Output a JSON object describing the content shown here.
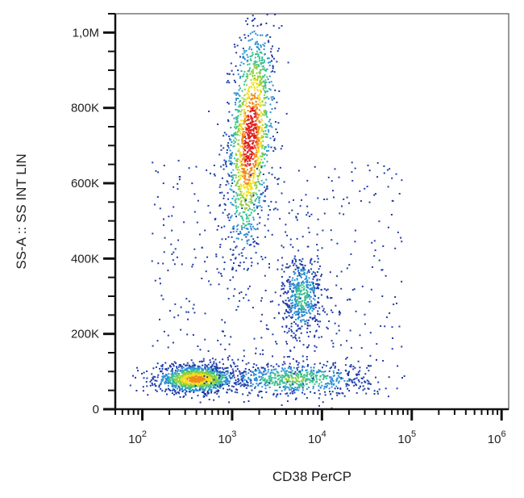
{
  "chart_data": {
    "type": "scatter",
    "subtype": "flow-cytometry density dot plot",
    "title": "",
    "xlabel": "CD38 PerCP",
    "ylabel": "SS-A :: SS INT LIN",
    "x_scale": "log",
    "y_scale": "linear",
    "xlim": [
      50,
      1200000
    ],
    "ylim": [
      0,
      1050000
    ],
    "grid": false,
    "legend": "none",
    "x_ticks": [
      {
        "value": 100,
        "base": "10",
        "exp": "2"
      },
      {
        "value": 1000,
        "base": "10",
        "exp": "3"
      },
      {
        "value": 10000,
        "base": "10",
        "exp": "4"
      },
      {
        "value": 100000,
        "base": "10",
        "exp": "5"
      },
      {
        "value": 1000000,
        "base": "10",
        "exp": "6"
      }
    ],
    "y_ticks": [
      {
        "value": 0,
        "label": "0"
      },
      {
        "value": 200000,
        "label": "200K"
      },
      {
        "value": 400000,
        "label": "400K"
      },
      {
        "value": 600000,
        "label": "600K"
      },
      {
        "value": 800000,
        "label": "800K"
      },
      {
        "value": 1000000,
        "label": "1,0M"
      }
    ],
    "colormap": [
      "#1f3ca8",
      "#2c8fd6",
      "#3bbf8f",
      "#8fcf3a",
      "#f0e020",
      "#f08a1c",
      "#e01e1e"
    ],
    "populations": [
      {
        "x_center": 1600,
        "y_center": 720000,
        "x_spread_log": 0.12,
        "y_spread": 150000,
        "tilt_log_per_100k": 0.03,
        "relative_density": 1.0
      },
      {
        "x_center": 6000,
        "y_center": 300000,
        "x_spread_log": 0.11,
        "y_spread": 55000,
        "tilt_log_per_100k": 0.0,
        "relative_density": 0.35
      },
      {
        "x_center": 400,
        "y_center": 80000,
        "x_spread_log": 0.22,
        "y_spread": 18000,
        "tilt_log_per_100k": 0.0,
        "relative_density": 0.8
      },
      {
        "x_center": 5000,
        "y_center": 80000,
        "x_spread_log": 0.4,
        "y_spread": 22000,
        "tilt_log_per_100k": 0.0,
        "relative_density": 0.45
      }
    ]
  }
}
